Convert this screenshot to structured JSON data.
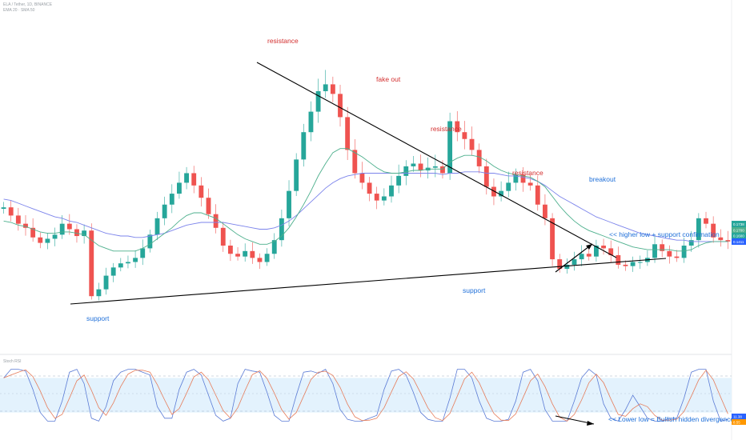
{
  "header": {
    "symbol_line": "ELA / Tether, 1D, BINANCE",
    "indicator_line": "EMA 20 · SMA 50"
  },
  "stoch_header": "Stoch RSI",
  "annotations": {
    "resistance_1": "resistance",
    "fake_out": "fake out",
    "resistance_2": "resistance",
    "resistance_3": "resistance",
    "breakout": "breakout",
    "higher_low": "<< higher low + support confirmation",
    "support_1": "support",
    "support_2": "support",
    "lower_low": "<< Lower low = Bullish hidden divergence"
  },
  "badges": {
    "price_green": "0.1738",
    "price_mid": "0.1700",
    "price_low": "0.1600",
    "price_blue": "0.1411",
    "stoch_blue": "11.38",
    "stoch_orange": "8.55"
  },
  "colors": {
    "up": "#26a69a",
    "down": "#ef5350",
    "ema": "#4caf8c",
    "sma": "#7b83eb",
    "trend": "#000000",
    "stoch_k": "#5b7bd5",
    "stoch_d": "#e67c5a",
    "band": "#e3f2fd"
  },
  "chart_data": {
    "type": "candlestick",
    "price_series": [
      0.22,
      0.214,
      0.208,
      0.205,
      0.198,
      0.194,
      0.197,
      0.2,
      0.208,
      0.204,
      0.199,
      0.203,
      0.155,
      0.16,
      0.17,
      0.176,
      0.179,
      0.18,
      0.183,
      0.19,
      0.2,
      0.212,
      0.222,
      0.23,
      0.238,
      0.245,
      0.236,
      0.227,
      0.215,
      0.205,
      0.192,
      0.186,
      0.184,
      0.188,
      0.183,
      0.18,
      0.186,
      0.196,
      0.212,
      0.232,
      0.255,
      0.275,
      0.29,
      0.305,
      0.31,
      0.303,
      0.286,
      0.262,
      0.245,
      0.238,
      0.23,
      0.225,
      0.228,
      0.236,
      0.243,
      0.25,
      0.252,
      0.247,
      0.249,
      0.25,
      0.245,
      0.283,
      0.275,
      0.27,
      0.262,
      0.25,
      0.235,
      0.228,
      0.232,
      0.238,
      0.244,
      0.238,
      0.236,
      0.222,
      0.212,
      0.182,
      0.175,
      0.178,
      0.182,
      0.186,
      0.184,
      0.192,
      0.19,
      0.185,
      0.178,
      0.177,
      0.18,
      0.18,
      0.183,
      0.193,
      0.188,
      0.184,
      0.183,
      0.192,
      0.196,
      0.212,
      0.208,
      0.198,
      0.196,
      0.195
    ],
    "ema20": [
      0.21,
      0.209,
      0.207,
      0.206,
      0.204,
      0.202,
      0.201,
      0.201,
      0.202,
      0.202,
      0.201,
      0.2,
      0.196,
      0.192,
      0.19,
      0.188,
      0.188,
      0.188,
      0.188,
      0.19,
      0.193,
      0.197,
      0.201,
      0.205,
      0.21,
      0.214,
      0.216,
      0.216,
      0.214,
      0.212,
      0.208,
      0.204,
      0.2,
      0.197,
      0.195,
      0.193,
      0.193,
      0.195,
      0.199,
      0.205,
      0.213,
      0.222,
      0.232,
      0.243,
      0.252,
      0.26,
      0.263,
      0.263,
      0.26,
      0.257,
      0.253,
      0.249,
      0.246,
      0.245,
      0.245,
      0.246,
      0.247,
      0.247,
      0.248,
      0.248,
      0.248,
      0.253,
      0.256,
      0.258,
      0.258,
      0.257,
      0.254,
      0.25,
      0.247,
      0.245,
      0.244,
      0.243,
      0.242,
      0.239,
      0.235,
      0.228,
      0.221,
      0.215,
      0.21,
      0.206,
      0.203,
      0.201,
      0.199,
      0.197,
      0.195,
      0.193,
      0.191,
      0.19,
      0.189,
      0.189,
      0.189,
      0.189,
      0.188,
      0.188,
      0.189,
      0.192,
      0.194,
      0.195,
      0.195,
      0.195
    ],
    "sma50": [
      0.226,
      0.225,
      0.223,
      0.221,
      0.219,
      0.217,
      0.215,
      0.213,
      0.212,
      0.21,
      0.209,
      0.207,
      0.205,
      0.203,
      0.201,
      0.2,
      0.199,
      0.199,
      0.198,
      0.198,
      0.199,
      0.2,
      0.201,
      0.203,
      0.205,
      0.207,
      0.208,
      0.209,
      0.209,
      0.209,
      0.209,
      0.208,
      0.207,
      0.206,
      0.205,
      0.204,
      0.204,
      0.205,
      0.207,
      0.21,
      0.214,
      0.219,
      0.224,
      0.229,
      0.234,
      0.238,
      0.241,
      0.243,
      0.244,
      0.245,
      0.245,
      0.245,
      0.245,
      0.245,
      0.245,
      0.245,
      0.245,
      0.245,
      0.245,
      0.245,
      0.244,
      0.245,
      0.245,
      0.246,
      0.246,
      0.246,
      0.245,
      0.245,
      0.244,
      0.243,
      0.243,
      0.242,
      0.241,
      0.239,
      0.236,
      0.232,
      0.228,
      0.225,
      0.222,
      0.219,
      0.216,
      0.213,
      0.211,
      0.209,
      0.207,
      0.205,
      0.203,
      0.201,
      0.2,
      0.199,
      0.198,
      0.197,
      0.196,
      0.196,
      0.195,
      0.195,
      0.195,
      0.195,
      0.195,
      0.195
    ],
    "stoch_k": [
      80,
      95,
      95,
      92,
      60,
      20,
      5,
      5,
      40,
      90,
      95,
      70,
      10,
      5,
      30,
      75,
      90,
      95,
      95,
      90,
      85,
      30,
      10,
      10,
      60,
      90,
      95,
      85,
      50,
      15,
      5,
      10,
      70,
      95,
      92,
      90,
      55,
      15,
      5,
      5,
      50,
      90,
      92,
      88,
      95,
      70,
      25,
      8,
      5,
      5,
      10,
      15,
      60,
      92,
      95,
      85,
      55,
      20,
      8,
      5,
      5,
      45,
      95,
      95,
      80,
      40,
      10,
      5,
      5,
      8,
      40,
      90,
      95,
      75,
      25,
      5,
      5,
      5,
      40,
      80,
      95,
      85,
      35,
      10,
      5,
      25,
      50,
      30,
      10,
      5,
      5,
      10,
      10,
      45,
      90,
      95,
      95,
      40,
      5,
      8
    ],
    "ylim": [
      0.12,
      0.36
    ],
    "stoch_ylim": [
      0,
      100
    ],
    "stoch_band": [
      20,
      80
    ]
  }
}
